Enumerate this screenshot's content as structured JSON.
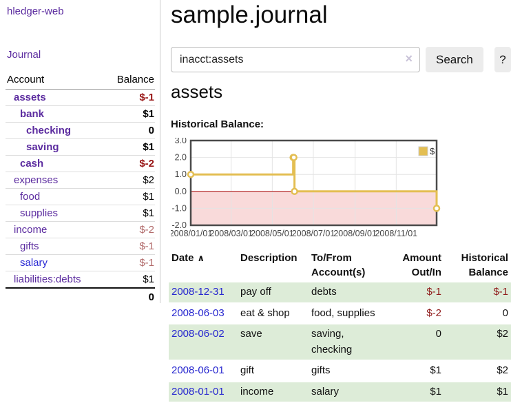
{
  "brand": "hledger-web",
  "nav": {
    "journal": "Journal"
  },
  "sidebar": {
    "headers": {
      "account": "Account",
      "balance": "Balance"
    },
    "rows": [
      {
        "name": "assets",
        "balance": "$-1"
      },
      {
        "name": "bank",
        "balance": "$1"
      },
      {
        "name": "checking",
        "balance": "0"
      },
      {
        "name": "saving",
        "balance": "$1"
      },
      {
        "name": "cash",
        "balance": "$-2"
      },
      {
        "name": "expenses",
        "balance": "$2"
      },
      {
        "name": "food",
        "balance": "$1"
      },
      {
        "name": "supplies",
        "balance": "$1"
      },
      {
        "name": "income",
        "balance": "$-2"
      },
      {
        "name": "gifts",
        "balance": "$-1"
      },
      {
        "name": "salary",
        "balance": "$-1"
      },
      {
        "name": "liabilities:debts",
        "balance": "$1"
      }
    ],
    "total": "0"
  },
  "header": {
    "title": "sample.journal"
  },
  "search": {
    "value": "inacct:assets",
    "clear_icon": "×",
    "search_label": "Search",
    "help_label": "?"
  },
  "section": {
    "heading": "assets",
    "chart_title": "Historical Balance:"
  },
  "chart_data": {
    "type": "line",
    "step": true,
    "title": "Historical Balance",
    "series": [
      {
        "name": "$",
        "color": "#E3BE52",
        "points": [
          [
            "2008-01-01",
            1
          ],
          [
            "2008-06-01",
            2
          ],
          [
            "2008-06-02",
            2
          ],
          [
            "2008-06-03",
            0
          ],
          [
            "2008-12-31",
            -1
          ]
        ]
      }
    ],
    "x_range": [
      "2008-01-01",
      "2008-12-31"
    ],
    "y_range": [
      -2,
      3
    ],
    "y_ticks": [
      3.0,
      2.0,
      1.0,
      0.0,
      -1.0,
      -2.0
    ],
    "x_tick_dates": [
      "2008-01-01",
      "2008-03-01",
      "2008-05-01",
      "2008-07-01",
      "2008-09-01",
      "2008-11-01"
    ],
    "x_ticks": [
      "2008/01/01",
      "2008/03/01",
      "2008/05/01",
      "2008/07/01",
      "2008/09/01",
      "2008/11/01"
    ],
    "legend_position": "top-right",
    "grid": true,
    "negative_region_color": "#f9dada",
    "zero_line_color": "#a40000"
  },
  "register": {
    "headers": {
      "date": "Date",
      "sort_icon": "∧",
      "description": "Description",
      "accounts": "To/From\nAccount(s)",
      "amount": "Amount\nOut/In",
      "balance": "Historical\nBalance"
    },
    "rows": [
      {
        "date": "2008-12-31",
        "description": "pay off",
        "accounts": "debts",
        "amount": "$-1",
        "balance": "$-1"
      },
      {
        "date": "2008-06-03",
        "description": "eat & shop",
        "accounts": "food, supplies",
        "amount": "$-2",
        "balance": "0"
      },
      {
        "date": "2008-06-02",
        "description": "save",
        "accounts": "saving,\nchecking",
        "amount": "0",
        "balance": "$2"
      },
      {
        "date": "2008-06-01",
        "description": "gift",
        "accounts": "gifts",
        "amount": "$1",
        "balance": "$2"
      },
      {
        "date": "2008-01-01",
        "description": "income",
        "accounts": "salary",
        "amount": "$1",
        "balance": "$1"
      }
    ]
  }
}
